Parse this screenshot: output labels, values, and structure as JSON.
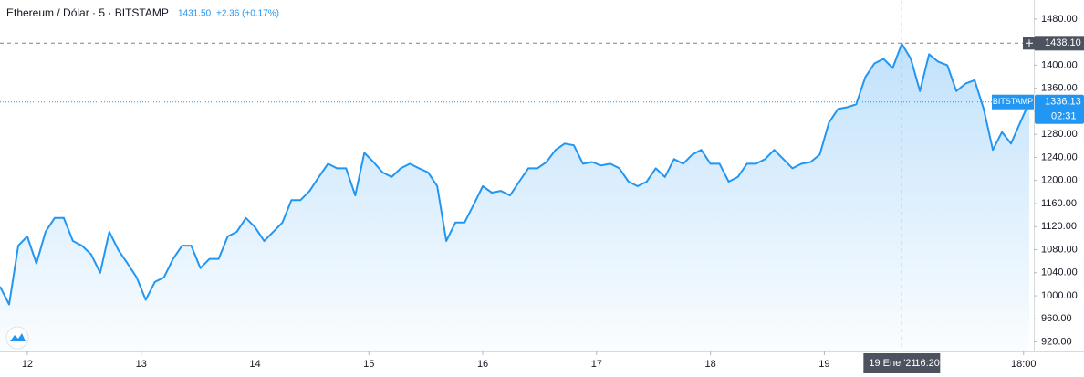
{
  "chart_data": {
    "type": "area",
    "header": {
      "symbol": "Ethereum / Dólar · 5 · BITSTAMP",
      "price": "1431.50",
      "change": "+2.36 (+0.17%)"
    },
    "color": "#2196f3",
    "x": [
      11.76,
      11.84,
      11.92,
      12.0,
      12.08,
      12.16,
      12.24,
      12.32,
      12.4,
      12.48,
      12.56,
      12.64,
      12.72,
      12.8,
      12.88,
      12.96,
      13.04,
      13.12,
      13.2,
      13.28,
      13.36,
      13.44,
      13.52,
      13.6,
      13.68,
      13.76,
      13.84,
      13.92,
      14.0,
      14.08,
      14.16,
      14.24,
      14.32,
      14.4,
      14.48,
      14.56,
      14.64,
      14.72,
      14.8,
      14.88,
      14.96,
      15.04,
      15.12,
      15.2,
      15.28,
      15.36,
      15.44,
      15.52,
      15.6,
      15.68,
      15.76,
      15.84,
      15.92,
      16.0,
      16.08,
      16.16,
      16.24,
      16.32,
      16.4,
      16.48,
      16.56,
      16.64,
      16.72,
      16.8,
      16.88,
      16.96,
      17.04,
      17.12,
      17.2,
      17.28,
      17.36,
      17.44,
      17.52,
      17.6,
      17.68,
      17.76,
      17.84,
      17.92,
      18.0,
      18.08,
      18.16,
      18.24,
      18.32,
      18.4,
      18.48,
      18.56,
      18.64,
      18.72,
      18.8,
      18.88,
      18.96,
      19.04,
      19.12,
      19.2,
      19.28,
      19.36,
      19.44,
      19.52,
      19.6,
      19.68,
      19.76,
      19.84,
      19.92,
      20.0,
      20.08,
      20.16,
      20.24,
      20.32,
      20.4,
      20.48,
      20.56,
      20.64,
      20.72,
      20.8
    ],
    "values": [
      1016,
      985,
      1087,
      1103,
      1056,
      1111,
      1135,
      1135,
      1095,
      1087,
      1072,
      1040,
      1111,
      1079,
      1056,
      1032,
      993,
      1024,
      1032,
      1064,
      1087,
      1087,
      1048,
      1064,
      1064,
      1103,
      1111,
      1135,
      1119,
      1095,
      1111,
      1127,
      1166,
      1166,
      1182,
      1206,
      1229,
      1221,
      1221,
      1174,
      1248,
      1232,
      1214,
      1206,
      1221,
      1229,
      1221,
      1214,
      1190,
      1095,
      1127,
      1127,
      1158,
      1190,
      1179,
      1182,
      1174,
      1198,
      1221,
      1221,
      1232,
      1253,
      1264,
      1261,
      1229,
      1232,
      1226,
      1229,
      1221,
      1198,
      1190,
      1198,
      1221,
      1206,
      1237,
      1229,
      1245,
      1253,
      1229,
      1229,
      1198,
      1206,
      1229,
      1229,
      1237,
      1253,
      1237,
      1221,
      1229,
      1232,
      1245,
      1300,
      1324,
      1327,
      1332,
      1379,
      1403,
      1411,
      1395,
      1437,
      1411,
      1355,
      1419,
      1406,
      1400,
      1355,
      1368,
      1374,
      1324,
      1253,
      1284,
      1264,
      1300,
      1336
    ],
    "xlim": [
      11.76,
      20.84
    ],
    "ylim": [
      903.5,
      1513
    ],
    "xticks": [
      12,
      13,
      14,
      15,
      16,
      17,
      18,
      19,
      {
        "value": 20.75,
        "label": "18:00"
      }
    ],
    "yticks": [
      {
        "value": 920,
        "label": "920.00"
      },
      {
        "value": 960,
        "label": "960.00"
      },
      {
        "value": 1000,
        "label": "1000.00"
      },
      {
        "value": 1040,
        "label": "1040.00"
      },
      {
        "value": 1080,
        "label": "1080.00"
      },
      {
        "value": 1120,
        "label": "1120.00"
      },
      {
        "value": 1160,
        "label": "1160.00"
      },
      {
        "value": 1200,
        "label": "1200.00"
      },
      {
        "value": 1240,
        "label": "1240.00"
      },
      {
        "value": 1280,
        "label": "1280.00"
      },
      {
        "value": 1320,
        "label": "1320.00"
      },
      {
        "value": 1360,
        "label": "1360.00"
      },
      {
        "value": 1400,
        "label": "1400.00"
      },
      {
        "value": 1440,
        "label": "1440.00"
      },
      {
        "value": 1480,
        "label": "1480.00"
      }
    ],
    "grid": false,
    "last_price": {
      "exchange": "BITSTAMP",
      "value": 1336.13,
      "countdown": "02:31"
    },
    "crosshair": {
      "x": 19.6806,
      "date_label": "19 Ene '21",
      "time_label": "16:20",
      "y": {
        "value": 1438.1,
        "label": "1438.10"
      }
    }
  }
}
